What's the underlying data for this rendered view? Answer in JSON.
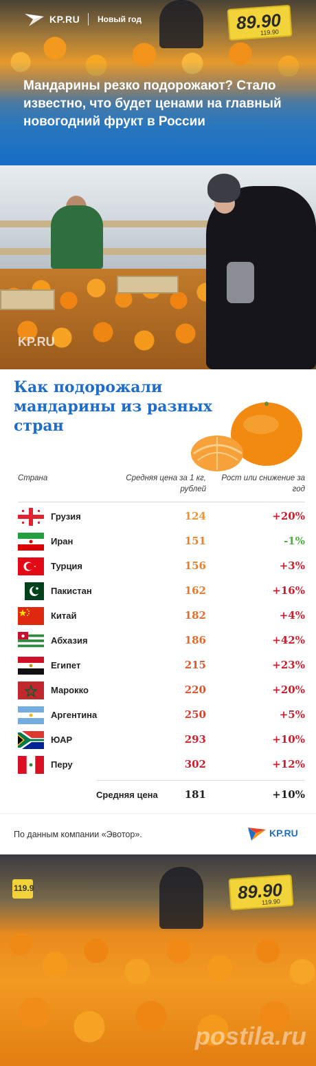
{
  "header": {
    "logo_text": "KP.RU",
    "section": "Новый год",
    "title": "Мандарины резко подорожают? Стало известно, что будет ценами на главный новогодний фрукт в России",
    "price_tag": {
      "big": "89.90",
      "small": "119.90"
    }
  },
  "photo": {
    "watermark": "KP.RU"
  },
  "infographic": {
    "title": "Как подорожали мандарины из разных стран",
    "columns": {
      "country": "Страна",
      "price": "Средняя цена за 1 кг, рублей",
      "change": "Рост или снижение за год"
    },
    "average": {
      "label": "Средняя цена",
      "price": "181",
      "change": "+10%"
    }
  },
  "chart_data": {
    "type": "table",
    "title": "Как подорожали мандарины из разных стран",
    "columns": [
      "Страна",
      "Средняя цена за 1 кг, рублей",
      "Рост или снижение за год"
    ],
    "rows": [
      {
        "country": "Грузия",
        "price": 124,
        "change": "+20%"
      },
      {
        "country": "Иран",
        "price": 151,
        "change": "-1%"
      },
      {
        "country": "Турция",
        "price": 156,
        "change": "+3%"
      },
      {
        "country": "Пакистан",
        "price": 162,
        "change": "+16%"
      },
      {
        "country": "Китай",
        "price": 182,
        "change": "+4%"
      },
      {
        "country": "Абхазия",
        "price": 186,
        "change": "+42%"
      },
      {
        "country": "Египет",
        "price": 215,
        "change": "+23%"
      },
      {
        "country": "Марокко",
        "price": 220,
        "change": "+20%"
      },
      {
        "country": "Аргентина",
        "price": 250,
        "change": "+5%"
      },
      {
        "country": "ЮАР",
        "price": 293,
        "change": "+10%"
      },
      {
        "country": "Перу",
        "price": 302,
        "change": "+12%"
      }
    ],
    "colors": {
      "price_low": "#f0922a",
      "price_high": "#c8202f",
      "change_negative": "#4caf3c",
      "change_positive": "#c8202f"
    }
  },
  "footer": {
    "source": "По данным компании «Эвотор».",
    "logo_text": "KP.RU"
  },
  "bottom_photo": {
    "price_tag": {
      "big": "89.90",
      "small": "119.90"
    },
    "side_tag": "119.9",
    "watermark": "postila.ru"
  }
}
